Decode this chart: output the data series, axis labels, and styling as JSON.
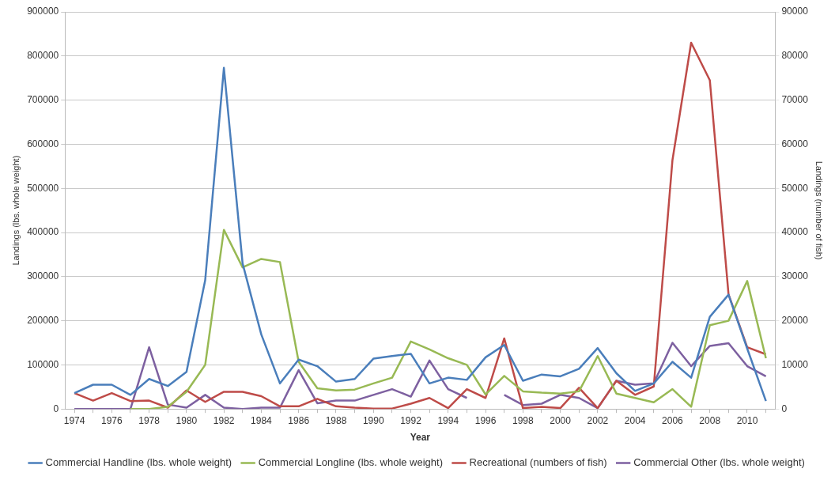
{
  "chart_data": {
    "type": "line",
    "xlabel": "Year",
    "ylabel": "Landings (lbs. whole weight)",
    "y2label": "Landings (number of fish)",
    "x": [
      1974,
      1975,
      1976,
      1977,
      1978,
      1979,
      1980,
      1981,
      1982,
      1983,
      1984,
      1985,
      1986,
      1987,
      1988,
      1989,
      1990,
      1991,
      1992,
      1993,
      1994,
      1995,
      1996,
      1997,
      1998,
      1999,
      2000,
      2001,
      2002,
      2003,
      2004,
      2005,
      2006,
      2007,
      2008,
      2009,
      2010,
      2011
    ],
    "series": [
      {
        "name": "Commercial Handline (lbs. whole weight)",
        "color": "#4a7ebb",
        "values": [
          36000,
          55000,
          55000,
          32000,
          68000,
          52000,
          84000,
          292000,
          773000,
          330000,
          169000,
          58000,
          112000,
          97000,
          62000,
          68000,
          114000,
          120000,
          125000,
          58000,
          71000,
          66000,
          117000,
          145000,
          64000,
          78000,
          74000,
          91000,
          138000,
          81000,
          41000,
          58000,
          107000,
          71000,
          209000,
          259000,
          137000,
          18000
        ]
      },
      {
        "name": "Commercial Longline (lbs. whole weight)",
        "color": "#98b954",
        "values": [
          null,
          null,
          null,
          0,
          0,
          5000,
          39000,
          100000,
          406000,
          321000,
          340000,
          333000,
          107000,
          47000,
          42000,
          44000,
          58000,
          71000,
          153000,
          135000,
          115000,
          100000,
          33000,
          75000,
          40000,
          37000,
          35000,
          40000,
          120000,
          35000,
          25000,
          15000,
          45000,
          5000,
          190000,
          200000,
          290000,
          115000
        ]
      },
      {
        "name": "Recreational (numbers of fish)",
        "color": "#be4b48",
        "axis": "y2",
        "values": [
          3600,
          1900,
          3600,
          1800,
          1900,
          300,
          4200,
          1600,
          3900,
          3900,
          2900,
          600,
          600,
          2300,
          600,
          300,
          100,
          100,
          1200,
          2500,
          200,
          4500,
          2500,
          16000,
          200,
          500,
          200,
          4800,
          200,
          6400,
          3200,
          5100,
          56400,
          83000,
          74500,
          26000,
          14000,
          12400
        ]
      },
      {
        "name": "Commercial Other (lbs. whole weight)",
        "color": "#7d60a0",
        "values": [
          0,
          0,
          0,
          0,
          140000,
          10000,
          3000,
          32000,
          3000,
          0,
          3000,
          3000,
          88000,
          13000,
          19000,
          19000,
          32000,
          45000,
          28000,
          110000,
          45000,
          25000,
          null,
          32000,
          9000,
          12000,
          32000,
          25000,
          2000,
          64000,
          55000,
          58000,
          150000,
          97000,
          143000,
          149000,
          97000,
          74000
        ]
      }
    ],
    "xlim": [
      1973.5,
      2011.5
    ],
    "xticks": [
      1974,
      {
        "value": 1975,
        "label": null
      },
      1976,
      {
        "value": 1977,
        "label": null
      },
      1978,
      {
        "value": 1979,
        "label": null
      },
      1980,
      {
        "value": 1981,
        "label": null
      },
      1982,
      {
        "value": 1983,
        "label": null
      },
      1984,
      {
        "value": 1985,
        "label": null
      },
      1986,
      {
        "value": 1987,
        "label": null
      },
      1988,
      {
        "value": 1989,
        "label": null
      },
      1990,
      {
        "value": 1991,
        "label": null
      },
      1992,
      {
        "value": 1993,
        "label": null
      },
      1994,
      {
        "value": 1995,
        "label": null
      },
      1996,
      {
        "value": 1997,
        "label": null
      },
      1998,
      {
        "value": 1999,
        "label": null
      },
      2000,
      {
        "value": 2001,
        "label": null
      },
      2002,
      {
        "value": 2003,
        "label": null
      },
      2004,
      {
        "value": 2005,
        "label": null
      },
      2006,
      {
        "value": 2007,
        "label": null
      },
      2008,
      {
        "value": 2009,
        "label": null
      },
      2010,
      {
        "value": 2011,
        "label": null
      }
    ],
    "ylim": [
      0,
      900000
    ],
    "yticks": [
      0,
      100000,
      200000,
      300000,
      400000,
      500000,
      600000,
      700000,
      800000,
      900000
    ],
    "y2lim": [
      0,
      90000
    ],
    "y2ticks": [
      0,
      10000,
      20000,
      30000,
      40000,
      50000,
      60000,
      70000,
      80000,
      90000
    ],
    "grid": "y",
    "legend": "bottom",
    "marker": "none",
    "line_style": "solid"
  }
}
